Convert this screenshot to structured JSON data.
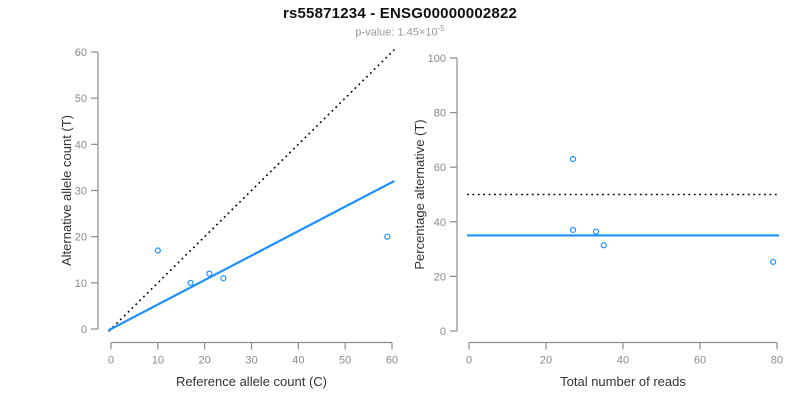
{
  "header": {
    "title": "rs55871234 - ENSG00000002822",
    "subtitle_prefix": "p-value: 1.45×10",
    "subtitle_exponent": "-5"
  },
  "colors": {
    "accent_blue": "#1e90ff",
    "axis_gray": "#8c8c8c",
    "tick_label_gray": "#8a8a8a",
    "axis_title_dark": "#333333",
    "reference_black": "#000000"
  },
  "chart_data": [
    {
      "type": "scatter",
      "name": "allele-counts-scatter",
      "xlabel": "Reference allele count (C)",
      "ylabel": "Alternative allele count (T)",
      "xlim": [
        0,
        60
      ],
      "ylim": [
        0,
        60
      ],
      "xticks": [
        0,
        10,
        20,
        30,
        40,
        50,
        60
      ],
      "yticks": [
        0,
        10,
        20,
        30,
        40,
        50,
        60
      ],
      "grid": false,
      "legend": null,
      "points": [
        [
          10,
          17
        ],
        [
          17,
          10
        ],
        [
          21,
          12
        ],
        [
          24,
          11
        ],
        [
          59,
          20
        ]
      ],
      "lines": [
        {
          "name": "identity-line",
          "style": "dotted",
          "color_key": "reference_black",
          "slope": 1,
          "intercept": 0
        },
        {
          "name": "fit-line",
          "style": "solid",
          "color_key": "accent_blue",
          "slope": 0.53,
          "intercept": 0
        }
      ]
    },
    {
      "type": "scatter",
      "name": "percentage-alternative-scatter",
      "xlabel": "Total number of reads",
      "ylabel": "Percentage alternative (T)",
      "xlim": [
        0,
        80
      ],
      "ylim": [
        0,
        100
      ],
      "xticks": [
        0,
        20,
        40,
        60,
        80
      ],
      "yticks": [
        0,
        20,
        40,
        60,
        80,
        100
      ],
      "grid": false,
      "legend": null,
      "points": [
        [
          27,
          63
        ],
        [
          27,
          37
        ],
        [
          33,
          36.4
        ],
        [
          35,
          31.4
        ],
        [
          79,
          25.3
        ]
      ],
      "lines": [
        {
          "name": "expected-50pct-line",
          "style": "dotted",
          "color_key": "reference_black",
          "slope": 0,
          "intercept": 50
        },
        {
          "name": "mean-percentage-line",
          "style": "solid",
          "color_key": "accent_blue",
          "slope": 0,
          "intercept": 35
        }
      ]
    }
  ]
}
